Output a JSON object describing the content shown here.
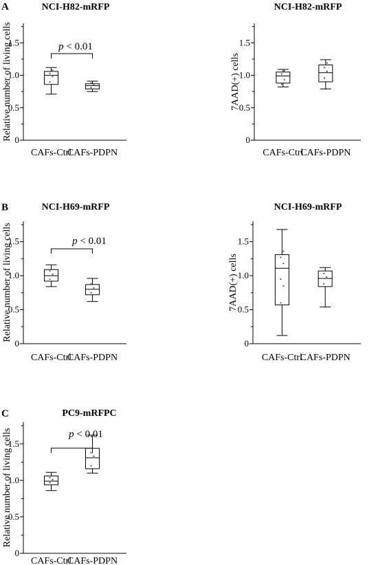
{
  "chart_data": [
    {
      "id": "h82-living",
      "panel": "A",
      "type": "box",
      "title": "NCI-H82-mRFP",
      "ylabel": "Relative number of living cells",
      "xlabel": "",
      "categories": [
        "CAFs-Ctrl",
        "CAFs-PDPN"
      ],
      "yticks": [
        "0",
        "0.5",
        "1.0",
        "1.5"
      ],
      "ylim": [
        0,
        1.8
      ],
      "boxes": [
        {
          "min": 0.71,
          "q1": 0.86,
          "median": 1.0,
          "q3": 1.06,
          "max": 1.12,
          "points": [
            0.9,
            0.98,
            1.03,
            1.08
          ]
        },
        {
          "min": 0.75,
          "q1": 0.79,
          "median": 0.84,
          "q3": 0.87,
          "max": 0.91,
          "points": [
            0.81,
            0.86,
            0.88
          ]
        }
      ],
      "annotation": {
        "p": "p",
        "rest": " < 0.01"
      },
      "grid": false
    },
    {
      "id": "h82-7aad",
      "panel": "",
      "type": "box",
      "title": "NCI-H82-mRFP",
      "ylabel": "7AAD(+) cells",
      "xlabel": "",
      "categories": [
        "CAFs-Ctrl",
        "CAFs-PDPN"
      ],
      "yticks": [
        "0",
        "0.5",
        "1.0",
        "1.5"
      ],
      "ylim": [
        0,
        1.8
      ],
      "boxes": [
        {
          "min": 0.82,
          "q1": 0.88,
          "median": 0.99,
          "q3": 1.05,
          "max": 1.09,
          "points": [
            0.86,
            0.93,
            1.02,
            1.07
          ]
        },
        {
          "min": 0.79,
          "q1": 0.9,
          "median": 1.04,
          "q3": 1.16,
          "max": 1.24,
          "points": [
            0.96,
            1.06,
            1.12,
            1.19
          ]
        }
      ],
      "annotation": null,
      "grid": false
    },
    {
      "id": "h69-living",
      "panel": "B",
      "type": "box",
      "title": "NCI-H69-mRFP",
      "ylabel": "Relative number of living cells",
      "xlabel": "",
      "categories": [
        "CAFs-Ctrl",
        "CAFs-PDPN"
      ],
      "yticks": [
        "0",
        "0.5",
        "1.0",
        "1.5"
      ],
      "ylim": [
        0,
        1.8
      ],
      "boxes": [
        {
          "min": 0.84,
          "q1": 0.92,
          "median": 1.0,
          "q3": 1.09,
          "max": 1.16,
          "points": [
            0.95,
            1.02,
            1.07
          ]
        },
        {
          "min": 0.62,
          "q1": 0.72,
          "median": 0.8,
          "q3": 0.87,
          "max": 0.96,
          "points": [
            0.75,
            0.82,
            0.88
          ]
        }
      ],
      "annotation": {
        "p": "p",
        "rest": " < 0.01"
      },
      "grid": false
    },
    {
      "id": "h69-7aad",
      "panel": "",
      "type": "box",
      "title": "NCI-H69-mRFP",
      "ylabel": "7AAD(+) cells",
      "xlabel": "",
      "categories": [
        "CAFs-Ctrl",
        "CAFs-PDPN"
      ],
      "yticks": [
        "0",
        "0.5",
        "1.0",
        "1.5"
      ],
      "ylim": [
        0,
        1.8
      ],
      "boxes": [
        {
          "min": 0.12,
          "q1": 0.57,
          "median": 1.11,
          "q3": 1.31,
          "max": 1.68,
          "points": [
            0.6,
            0.85,
            0.95,
            1.18,
            1.27,
            1.36
          ]
        },
        {
          "min": 0.54,
          "q1": 0.84,
          "median": 0.96,
          "q3": 1.07,
          "max": 1.12,
          "points": [
            0.88,
            0.98,
            1.03
          ]
        }
      ],
      "annotation": null,
      "grid": false
    },
    {
      "id": "pc9-living",
      "panel": "C",
      "type": "box",
      "title": "PC9-mRFPC",
      "ylabel": "Relative number of living cells",
      "xlabel": "",
      "categories": [
        "CAFs-Ctrl",
        "CAFs-PDPN"
      ],
      "yticks": [
        "0",
        "0.5",
        "1.0",
        "1.5"
      ],
      "ylim": [
        0,
        1.8
      ],
      "boxes": [
        {
          "min": 0.86,
          "q1": 0.94,
          "median": 0.99,
          "q3": 1.06,
          "max": 1.11,
          "points": [
            0.97,
            1.01,
            1.04
          ]
        },
        {
          "min": 1.1,
          "q1": 1.16,
          "median": 1.31,
          "q3": 1.44,
          "max": 1.62,
          "points": [
            1.2,
            1.33,
            1.38
          ]
        }
      ],
      "annotation": {
        "p": "p",
        "rest": " < 0.01"
      },
      "grid": false
    }
  ]
}
